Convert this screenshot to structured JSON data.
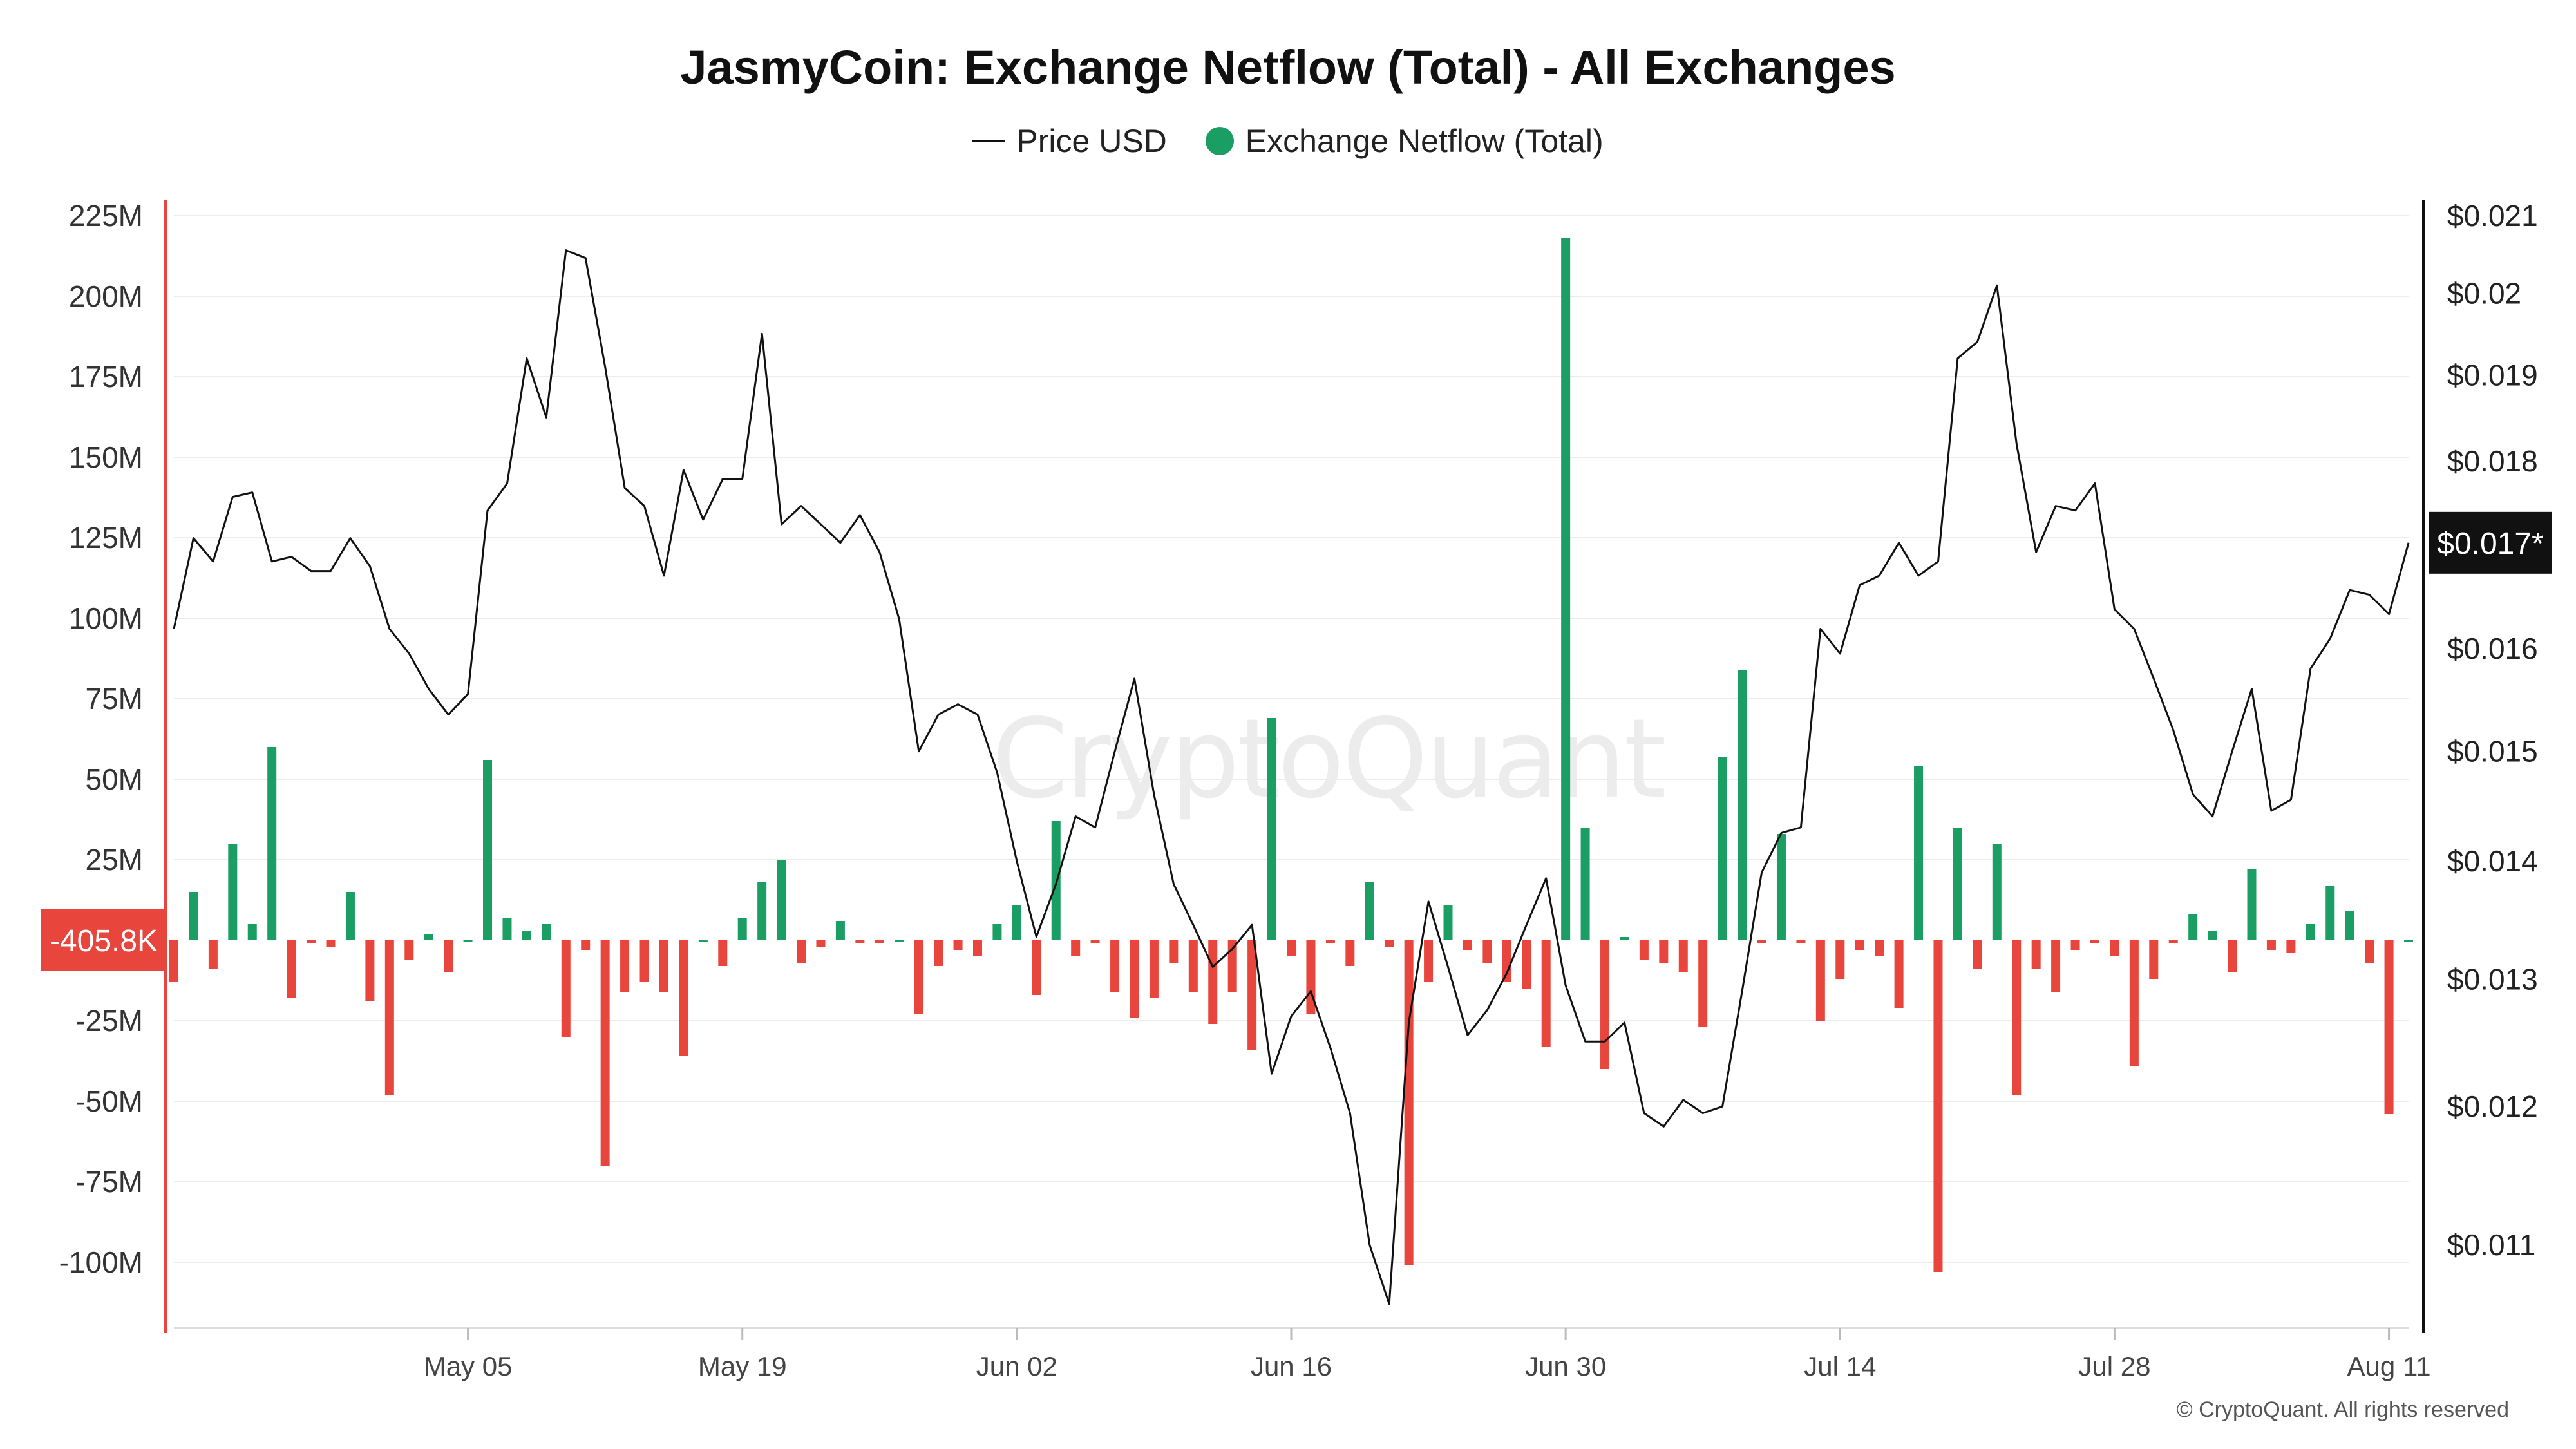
{
  "title": "JasmyCoin: Exchange Netflow (Total) - All Exchanges",
  "legend": {
    "price_label": "Price USD",
    "netflow_label": "Exchange Netflow (Total)"
  },
  "watermark": "CryptoQuant",
  "copyright": "© CryptoQuant. All rights reserved",
  "colors": {
    "positive": "#1a9e63",
    "negative": "#e8453c",
    "price_line": "#111111",
    "left_axis": "#e8453c",
    "right_axis": "#111111"
  },
  "chart_data": {
    "type": "bar",
    "x_start": "2024-04-20",
    "x_end": "2024-08-12",
    "x_tick_labels": [
      {
        "date": "2024-05-05",
        "label": "May 05"
      },
      {
        "date": "2024-05-19",
        "label": "May 19"
      },
      {
        "date": "2024-06-02",
        "label": "Jun 02"
      },
      {
        "date": "2024-06-16",
        "label": "Jun 16"
      },
      {
        "date": "2024-06-30",
        "label": "Jun 30"
      },
      {
        "date": "2024-07-14",
        "label": "Jul 14"
      },
      {
        "date": "2024-07-28",
        "label": "Jul 28"
      },
      {
        "date": "2024-08-11",
        "label": "Aug 11"
      }
    ],
    "left_axis": {
      "ylim": [
        -120,
        232
      ],
      "ticks": [
        225,
        200,
        175,
        150,
        125,
        100,
        75,
        50,
        25,
        -25,
        -50,
        -75,
        -100
      ],
      "tick_labels": [
        "225M",
        "200M",
        "175M",
        "150M",
        "125M",
        "100M",
        "75M",
        "50M",
        "25M",
        "-25M",
        "-50M",
        "-75M",
        "-100M"
      ],
      "current_value_label": "-405.8K"
    },
    "right_axis": {
      "scale": "log",
      "ylim": [
        0.01045,
        0.0213
      ],
      "ticks": [
        0.021,
        0.02,
        0.019,
        0.018,
        0.017,
        0.016,
        0.015,
        0.014,
        0.013,
        0.012,
        0.011
      ],
      "tick_labels": [
        "$0.021",
        "$0.02",
        "$0.019",
        "$0.018",
        "$0.017*",
        "$0.016",
        "$0.015",
        "$0.014",
        "$0.013",
        "$0.012",
        "$0.011"
      ],
      "current_value_label": "$0.017*"
    },
    "series": [
      {
        "name": "Exchange Netflow (Total)",
        "type": "bar",
        "values": [
          -13,
          15,
          -9,
          30,
          5,
          60,
          -18,
          -1,
          -2,
          15,
          -19,
          -48,
          -6,
          2,
          -10,
          0,
          56,
          7,
          3,
          5,
          -30,
          -3,
          -70,
          -16,
          -13,
          -16,
          -36,
          0,
          -8,
          7,
          18,
          25,
          -7,
          -2,
          6,
          -1,
          -1,
          0,
          -23,
          -8,
          -3,
          -5,
          5,
          11,
          -17,
          37,
          -5,
          -1,
          -16,
          -24,
          -18,
          -7,
          -16,
          -26,
          -16,
          -34,
          69,
          -5,
          -23,
          -1,
          -8,
          18,
          -2,
          -101,
          -13,
          11,
          -3,
          -7,
          -13,
          -15,
          -33,
          218,
          35,
          -40,
          1,
          -6,
          -7,
          -10,
          -27,
          57,
          84,
          -1,
          33,
          -1,
          -25,
          -12,
          -3,
          -5,
          -21,
          54,
          -103,
          35,
          -9,
          30,
          -48,
          -9,
          -16,
          -3,
          -1,
          -5,
          -39,
          -12,
          -1,
          8,
          3,
          -10,
          22,
          -3,
          -4,
          5,
          17,
          9,
          -7,
          -54,
          0
        ]
      },
      {
        "name": "Price USD",
        "type": "line",
        "values": [
          0.0162,
          0.01715,
          0.0169,
          0.0176,
          0.01765,
          0.0169,
          0.01695,
          0.0168,
          0.0168,
          0.01715,
          0.01685,
          0.0162,
          0.01595,
          0.0156,
          0.01535,
          0.01555,
          0.01745,
          0.01775,
          0.0192,
          0.0185,
          0.02055,
          0.02045,
          0.0191,
          0.0177,
          0.0175,
          0.01675,
          0.0179,
          0.01735,
          0.0178,
          0.0178,
          0.0195,
          0.0173,
          0.0175,
          0.0173,
          0.0171,
          0.0174,
          0.017,
          0.0163,
          0.015,
          0.01535,
          0.01545,
          0.01535,
          0.0148,
          0.014,
          0.01335,
          0.0138,
          0.0144,
          0.0143,
          0.015,
          0.0157,
          0.0146,
          0.0138,
          0.01345,
          0.0131,
          0.01325,
          0.01345,
          0.01225,
          0.0127,
          0.0129,
          0.01245,
          0.01195,
          0.011,
          0.0106,
          0.01265,
          0.01365,
          0.0131,
          0.01255,
          0.01275,
          0.01305,
          0.01345,
          0.01385,
          0.01295,
          0.0125,
          0.0125,
          0.01265,
          0.01195,
          0.01185,
          0.01205,
          0.01195,
          0.012,
          0.0129,
          0.0139,
          0.01425,
          0.0143,
          0.0162,
          0.01595,
          0.01665,
          0.01675,
          0.0171,
          0.01675,
          0.0169,
          0.0192,
          0.0194,
          0.0201,
          0.0182,
          0.017,
          0.0175,
          0.01745,
          0.01775,
          0.0164,
          0.0162,
          0.0157,
          0.0152,
          0.0146,
          0.0144,
          0.015,
          0.0156,
          0.01445,
          0.01455,
          0.0158,
          0.0161,
          0.0166,
          0.01655,
          0.01635,
          0.0171
        ]
      }
    ],
    "grid": true,
    "legend_position": "top-center"
  }
}
